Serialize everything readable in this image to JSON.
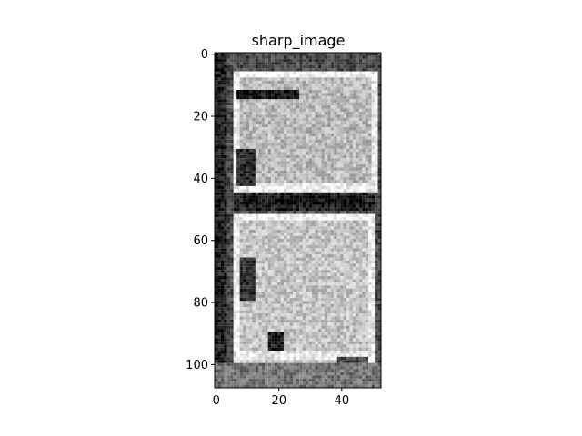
{
  "chart_data": {
    "type": "heatmap",
    "title": "sharp_image",
    "xlabel": "",
    "ylabel": "",
    "colormap": "gray",
    "image_width": 53,
    "image_height": 108,
    "xlim": [
      -0.5,
      52.5
    ],
    "ylim": [
      107.5,
      -0.5
    ],
    "x_ticks": [
      0,
      20,
      40
    ],
    "y_ticks": [
      0,
      20,
      40,
      60,
      80,
      100
    ],
    "x_tick_labels": [
      "0",
      "20",
      "40"
    ],
    "y_tick_labels": [
      "0",
      "20",
      "40",
      "60",
      "80",
      "100"
    ],
    "grid": false,
    "legend": "none",
    "colors": {
      "background": "#ffffff",
      "axes_edge": "#000000"
    }
  }
}
